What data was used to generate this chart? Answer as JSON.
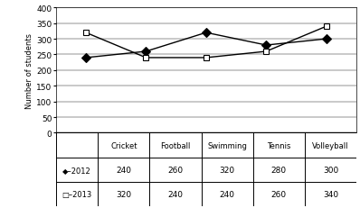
{
  "categories": [
    "Cricket",
    "Football",
    "Swimming",
    "Tennis",
    "Volleyball"
  ],
  "series_2012": [
    240,
    260,
    320,
    280,
    300
  ],
  "series_2013": [
    320,
    240,
    240,
    260,
    340
  ],
  "ylabel": "Number of students",
  "ylim": [
    0,
    400
  ],
  "yticks": [
    0,
    50,
    100,
    150,
    200,
    250,
    300,
    350,
    400
  ],
  "marker_2012": "D",
  "marker_2013": "s",
  "row_label_2012": "◆–2012",
  "row_label_2013": "□–2013",
  "fig_width": 3.98,
  "fig_height": 2.32,
  "dpi": 100
}
